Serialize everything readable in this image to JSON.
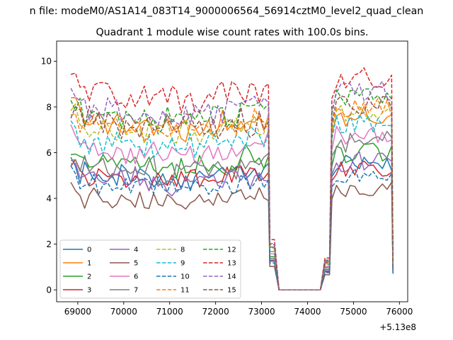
{
  "chart_data": {
    "type": "line",
    "suptitle": "n file: modeM0/AS1A14_083T14_9000006564_56914cztM0_level2_quad_clean",
    "title": "Quadrant 1 module wise count rates with 100.0s bins.",
    "xlabel": "",
    "ylabel": "",
    "offset_label": "+5.13e8",
    "xlim": [
      68540,
      76180
    ],
    "ylim": [
      -0.52,
      10.88
    ],
    "xticks": [
      69000,
      70000,
      71000,
      72000,
      73000,
      74000,
      75000,
      76000
    ],
    "xtick_labels": [
      "69000",
      "70000",
      "71000",
      "72000",
      "73000",
      "74000",
      "75000",
      "76000"
    ],
    "yticks": [
      0,
      2,
      4,
      6,
      8,
      10
    ],
    "ytick_labels": [
      "0",
      "2",
      "4",
      "6",
      "8",
      "10"
    ],
    "grid": false,
    "legend_position": "lower-left",
    "legend_columns": 4,
    "x_segments": [
      {
        "start": 68850,
        "end": 73150,
        "step": 100
      },
      {
        "start": 73180,
        "end": 74480,
        "step": 100
      },
      {
        "start": 74530,
        "end": 75830,
        "step": 100
      },
      {
        "start": 75860,
        "end": 75860,
        "step": 100
      }
    ],
    "series": [
      {
        "name": "0",
        "color": "#1f77b4",
        "dash": "solid",
        "active_base": 5.2,
        "active_amp": 0.35,
        "after": 5.5,
        "end": 0.85,
        "seed": 1
      },
      {
        "name": "1",
        "color": "#ff7f0e",
        "dash": "solid",
        "active_base": 7.5,
        "active_amp": 0.4,
        "after": 7.6,
        "end": 1.05,
        "seed": 2
      },
      {
        "name": "2",
        "color": "#2ca02c",
        "dash": "solid",
        "active_base": 5.8,
        "active_amp": 0.4,
        "after": 6.0,
        "end": 0.95,
        "seed": 3
      },
      {
        "name": "3",
        "color": "#d62728",
        "dash": "solid",
        "active_base": 5.1,
        "active_amp": 0.3,
        "after": 5.3,
        "end": 0.85,
        "seed": 4
      },
      {
        "name": "4",
        "color": "#9467bd",
        "dash": "solid",
        "active_base": 5.0,
        "active_amp": 0.4,
        "after": 5.6,
        "end": 0.9,
        "seed": 5
      },
      {
        "name": "5",
        "color": "#8c564b",
        "dash": "solid",
        "active_base": 4.1,
        "active_amp": 0.3,
        "after": 4.4,
        "end": 0.75,
        "seed": 6
      },
      {
        "name": "6",
        "color": "#e377c2",
        "dash": "solid",
        "active_base": 6.3,
        "active_amp": 0.4,
        "after": 6.8,
        "end": 1.0,
        "seed": 7
      },
      {
        "name": "7",
        "color": "#7f7f7f",
        "dash": "solid",
        "active_base": 5.5,
        "active_amp": 0.45,
        "after": 6.5,
        "end": 0.95,
        "seed": 8
      },
      {
        "name": "8",
        "color": "#bcbd22",
        "dash": "dashed",
        "active_base": 7.3,
        "active_amp": 0.4,
        "after": 7.8,
        "end": 1.1,
        "seed": 9
      },
      {
        "name": "9",
        "color": "#17becf",
        "dash": "dashed",
        "active_base": 6.7,
        "active_amp": 0.4,
        "after": 7.3,
        "end": 1.05,
        "seed": 10
      },
      {
        "name": "10",
        "color": "#1f77b4",
        "dash": "dashed",
        "active_base": 4.7,
        "active_amp": 0.3,
        "after": 5.0,
        "end": 0.65,
        "seed": 11
      },
      {
        "name": "11",
        "color": "#ff7f0e",
        "dash": "dashed",
        "active_base": 7.5,
        "active_amp": 0.4,
        "after": 8.0,
        "end": 1.1,
        "seed": 12
      },
      {
        "name": "12",
        "color": "#2ca02c",
        "dash": "dashed",
        "active_base": 7.9,
        "active_amp": 0.4,
        "after": 8.5,
        "end": 1.15,
        "seed": 13
      },
      {
        "name": "13",
        "color": "#d62728",
        "dash": "dashed",
        "active_base": 8.8,
        "active_amp": 0.45,
        "after": 9.3,
        "end": 1.3,
        "seed": 14
      },
      {
        "name": "14",
        "color": "#9467bd",
        "dash": "dashed",
        "active_base": 8.1,
        "active_amp": 0.4,
        "after": 8.7,
        "end": 1.2,
        "seed": 15
      },
      {
        "name": "15",
        "color": "#8c564b",
        "dash": "dashed",
        "active_base": 7.5,
        "active_amp": 0.4,
        "after": 8.1,
        "end": 1.1,
        "seed": 16
      }
    ]
  }
}
